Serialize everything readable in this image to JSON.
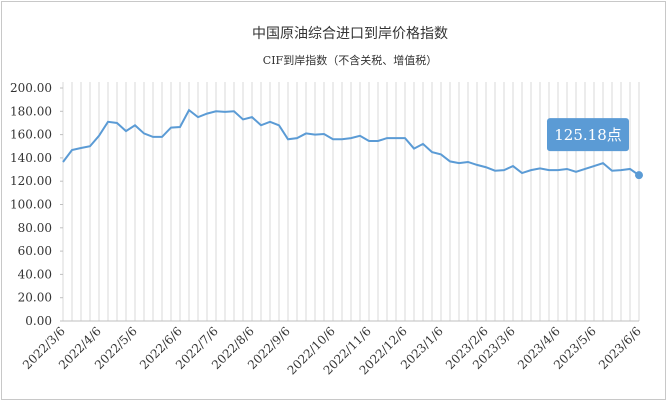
{
  "chart_data": {
    "type": "line",
    "title": "中国原油综合进口到岸价格指数",
    "subtitle": "CIF到岸指数（不含关税、增值税）",
    "categories": [
      "2022/3/6",
      null,
      null,
      null,
      "2022/4/6",
      null,
      null,
      null,
      "2022/5/6",
      null,
      null,
      null,
      null,
      "2022/6/6",
      null,
      null,
      null,
      "2022/7/6",
      null,
      null,
      null,
      "2022/8/6",
      null,
      null,
      null,
      "2022/9/6",
      null,
      null,
      null,
      null,
      "2022/10/6",
      null,
      null,
      null,
      "2022/11/6",
      null,
      null,
      null,
      "2022/12/6",
      null,
      null,
      null,
      "2023/1/6",
      null,
      null,
      null,
      null,
      "2023/2/6",
      null,
      null,
      "2023/3/6",
      null,
      null,
      null,
      null,
      "2023/4/6",
      null,
      null,
      null,
      "2023/5/6",
      null,
      null,
      null,
      null,
      "2023/6/6"
    ],
    "series": [
      {
        "color": "#5b9bd5",
        "values": [
          136.5,
          146.8,
          148.5,
          150,
          159,
          171,
          170,
          163,
          168,
          161,
          158,
          158,
          166,
          166.5,
          181,
          175,
          178,
          180,
          179.5,
          180,
          173,
          175,
          168,
          171,
          168,
          156,
          157,
          161,
          160,
          160.5,
          156,
          156,
          157,
          159,
          154.5,
          154.5,
          157,
          157,
          157,
          148,
          152,
          145,
          143,
          137,
          135.5,
          136.5,
          134,
          132,
          129,
          129.5,
          133,
          127,
          129.5,
          131,
          129.5,
          129.5,
          130.5,
          128,
          130.5,
          133,
          135.5,
          129,
          129.5,
          130.5,
          125.18
        ],
        "value_labels": [
          null,
          null,
          null,
          null,
          null,
          null,
          null,
          null,
          null,
          null,
          null,
          null,
          null,
          null,
          null,
          null,
          null,
          null,
          null,
          null,
          null,
          null,
          null,
          null,
          null,
          null,
          null,
          null,
          null,
          null,
          null,
          null,
          null,
          null,
          null,
          null,
          null,
          null,
          null,
          null,
          null,
          null,
          null,
          null,
          null,
          null,
          null,
          null,
          null,
          null,
          null,
          null,
          null,
          null,
          null,
          null,
          null,
          null,
          null,
          null,
          null,
          null,
          null,
          null,
          "125.18点"
        ]
      }
    ],
    "ylim": [
      0,
      200
    ],
    "yticks": [
      {
        "value": 0,
        "label": "0.00"
      },
      {
        "value": 20,
        "label": "20.00"
      },
      {
        "value": 40,
        "label": "40.00"
      },
      {
        "value": 60,
        "label": "60.00"
      },
      {
        "value": 80,
        "label": "80.00"
      },
      {
        "value": 100,
        "label": "100.00"
      },
      {
        "value": 120,
        "label": "120.00"
      },
      {
        "value": 140,
        "label": "140.00"
      },
      {
        "value": 160,
        "label": "160.00"
      },
      {
        "value": 180,
        "label": "180.00"
      },
      {
        "value": 200,
        "label": "200.00"
      }
    ],
    "grid": true
  }
}
